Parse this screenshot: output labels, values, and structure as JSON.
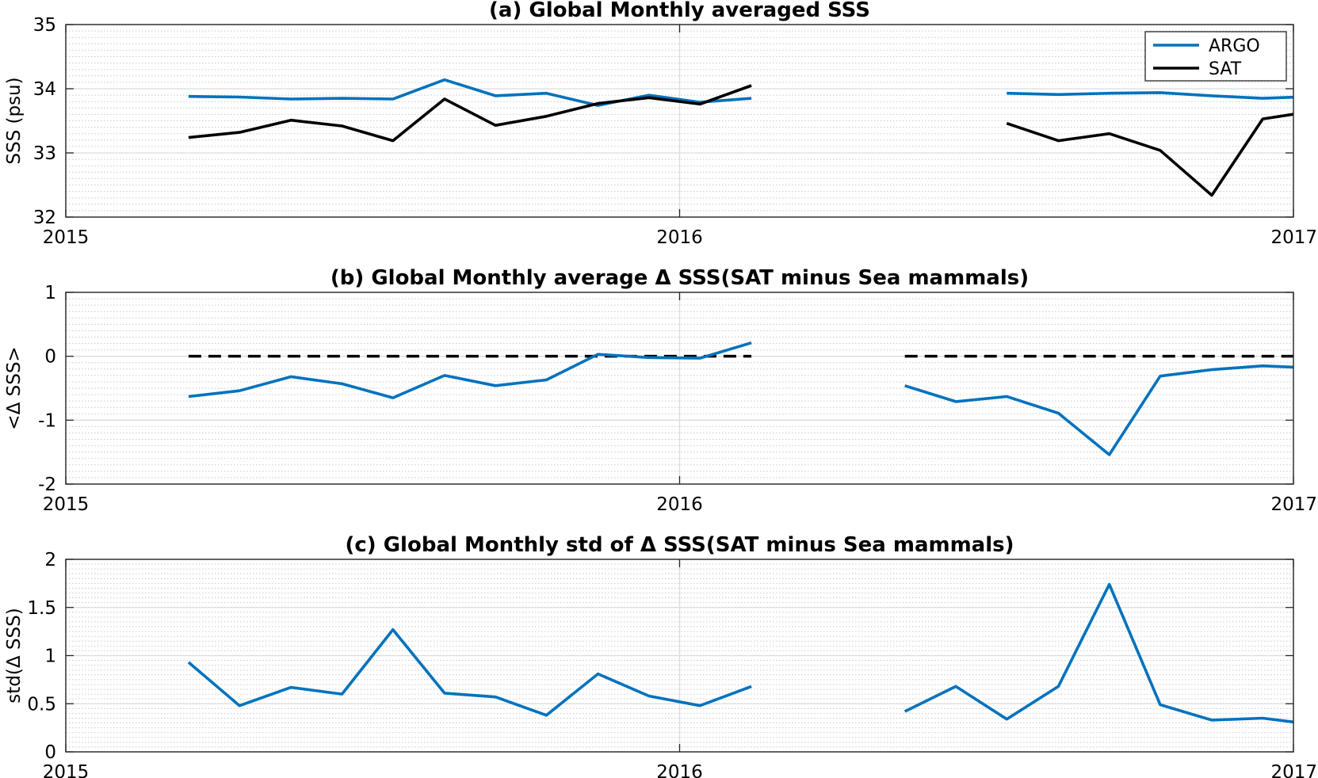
{
  "colors": {
    "argo": "#0072BD",
    "sat": "#000000",
    "delta": "#0072BD",
    "zero_line": "#000000"
  },
  "chart_data": [
    {
      "type": "line",
      "title": "(a) Global Monthly averaged SSS",
      "xlabel": "",
      "ylabel": "SSS (psu)",
      "xlim": [
        2015.0,
        2017.0
      ],
      "ylim": [
        32,
        35
      ],
      "xticks": [
        "2015",
        "2016",
        "2017"
      ],
      "yticks": [
        "32",
        "33",
        "34",
        "35"
      ],
      "grid": "major-and-minor",
      "legend_position": "top-right",
      "series": [
        {
          "name": "ARGO",
          "color": "#0072BD",
          "x": [
            2015.2,
            2015.283,
            2015.367,
            2015.45,
            2015.533,
            2015.617,
            2015.7,
            2015.783,
            2015.867,
            2015.95,
            2016.033,
            2016.117,
            2016.533,
            2016.617,
            2016.7,
            2016.783,
            2016.867,
            2016.95,
            2017.033
          ],
          "y": [
            33.88,
            33.87,
            33.84,
            33.85,
            33.84,
            34.14,
            33.89,
            33.93,
            33.74,
            33.9,
            33.79,
            33.85,
            33.93,
            33.91,
            33.93,
            33.94,
            33.89,
            33.85,
            33.88
          ],
          "x2": [
            2016.867,
            2016.95,
            2017.0
          ],
          "y2": [
            33.89,
            33.93,
            33.91
          ]
        },
        {
          "name": "SAT",
          "color": "#000000",
          "x": [
            2015.2,
            2015.283,
            2015.367,
            2015.45,
            2015.533,
            2015.617,
            2015.7,
            2015.783,
            2015.867,
            2015.95,
            2016.033,
            2016.117,
            2016.533,
            2016.617,
            2016.7,
            2016.783,
            2016.867,
            2016.95,
            2017.033
          ],
          "y": [
            33.24,
            33.32,
            33.51,
            33.42,
            33.19,
            33.84,
            33.43,
            33.57,
            33.77,
            33.86,
            33.76,
            34.05,
            33.46,
            33.19,
            33.3,
            33.04,
            32.34,
            33.53,
            33.65
          ]
        }
      ]
    },
    {
      "type": "line",
      "title": "(b) Global Monthly average Δ SSS(SAT minus Sea mammals)",
      "xlabel": "",
      "ylabel": "<Δ SSS>",
      "xlim": [
        2015.0,
        2017.0
      ],
      "ylim": [
        -2,
        1
      ],
      "xticks": [
        "2015",
        "2016",
        "2017"
      ],
      "yticks": [
        "-2",
        "-1",
        "0",
        "1"
      ],
      "grid": "major-and-minor",
      "zero_line": true,
      "series": [
        {
          "name": "",
          "color": "#0072BD",
          "x": [
            2015.2,
            2015.283,
            2015.367,
            2015.45,
            2015.533,
            2015.617,
            2015.7,
            2015.783,
            2015.867,
            2015.95,
            2016.033,
            2016.117
          ],
          "y": [
            -0.63,
            -0.54,
            -0.32,
            -0.43,
            -0.65,
            -0.3,
            -0.46,
            -0.37,
            0.03,
            -0.02,
            -0.03,
            0.21
          ]
        },
        {
          "name": "",
          "color": "#0072BD",
          "x": [
            2016.367,
            2016.45,
            2016.533,
            2016.617,
            2016.7,
            2016.783,
            2016.867,
            2016.95,
            2017.0
          ],
          "y": [
            -0.46,
            -0.71,
            -0.63,
            -0.89,
            -1.54,
            -0.31,
            -0.21,
            -0.15,
            -0.17
          ]
        }
      ]
    },
    {
      "type": "line",
      "title": "(c) Global Monthly std of Δ SSS(SAT minus Sea mammals)",
      "xlabel": "",
      "ylabel": "std(Δ SSS)",
      "xlim": [
        2015.0,
        2017.0
      ],
      "ylim": [
        0,
        2
      ],
      "xticks": [
        "2015",
        "2016",
        "2017"
      ],
      "yticks": [
        "0",
        "0.5",
        "1",
        "1.5",
        "2"
      ],
      "grid": "major-and-minor",
      "series": [
        {
          "name": "",
          "color": "#0072BD",
          "x": [
            2015.2,
            2015.283,
            2015.367,
            2015.45,
            2015.533,
            2015.617,
            2015.7,
            2015.783,
            2015.867,
            2015.95,
            2016.033,
            2016.117
          ],
          "y": [
            0.93,
            0.48,
            0.67,
            0.6,
            1.27,
            0.61,
            0.57,
            0.38,
            0.81,
            0.58,
            0.48,
            0.68
          ]
        },
        {
          "name": "",
          "color": "#0072BD",
          "x": [
            2016.367,
            2016.45,
            2016.533,
            2016.617,
            2016.7,
            2016.783,
            2016.867,
            2016.95,
            2017.0
          ],
          "y": [
            0.42,
            0.68,
            0.34,
            0.68,
            1.74,
            0.49,
            0.33,
            0.35,
            0.31
          ]
        }
      ]
    }
  ]
}
